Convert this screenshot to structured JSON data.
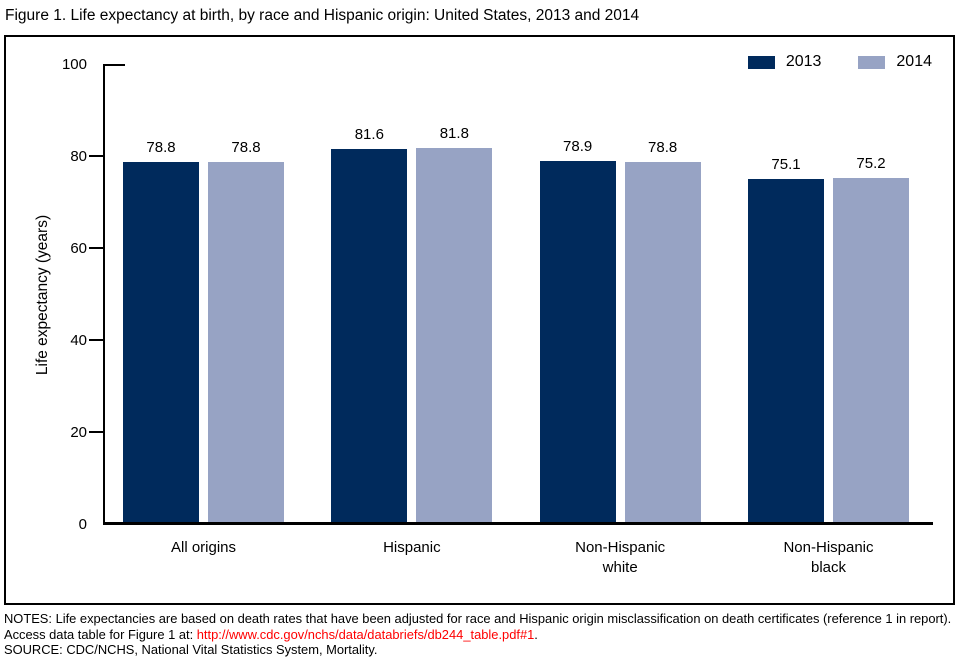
{
  "title": "Figure 1. Life expectancy at birth, by race and Hispanic origin: United States, 2013 and 2014",
  "chart_data": {
    "type": "bar",
    "categories": [
      "All origins",
      "Hispanic",
      "Non-Hispanic\nwhite",
      "Non-Hispanic\nblack"
    ],
    "series": [
      {
        "name": "2013",
        "color": "#002a5c",
        "values": [
          78.8,
          81.6,
          78.9,
          75.1
        ]
      },
      {
        "name": "2014",
        "color": "#97a3c4",
        "values": [
          78.8,
          81.8,
          78.8,
          75.2
        ]
      }
    ],
    "ylabel": "Life expectancy (years)",
    "ylim": [
      0,
      100
    ],
    "yticks": [
      0,
      20,
      40,
      60,
      80,
      100
    ],
    "grid": false,
    "legend_position": "top-right",
    "value_labels": true
  },
  "notes": {
    "prefix": "NOTES: Life expectancies are based on death rates that have been adjusted for race and Hispanic origin misclassification on death certificates (reference 1 in report). Access data table for Figure 1 at: ",
    "link_text": "http://www.cdc.gov/nchs/data/databriefs/db244_table.pdf#1",
    "suffix": ".",
    "source": "SOURCE: CDC/NCHS, National Vital Statistics System, Mortality."
  },
  "colors": {
    "bar_2013": "#002a5c",
    "bar_2014": "#97a3c4",
    "link": "#ff0000",
    "axis": "#000000",
    "text": "#000000",
    "background": "#ffffff"
  }
}
